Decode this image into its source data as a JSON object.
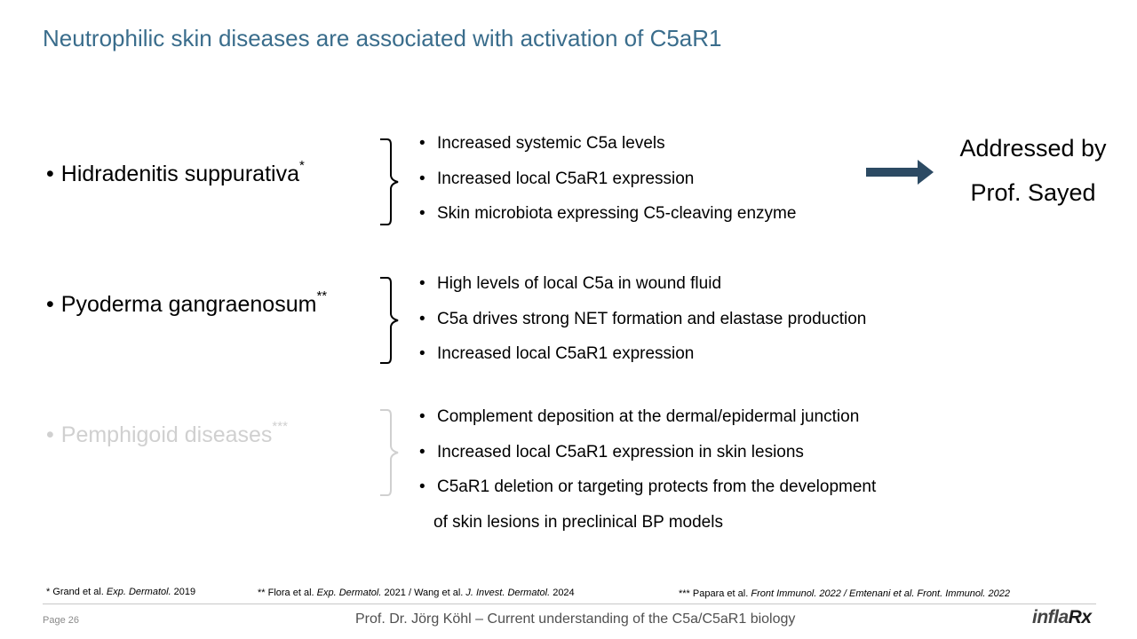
{
  "title": "Neutrophilic skin diseases are associated with activation of C5aR1",
  "sections": [
    {
      "disease": "Hidradenitis suppurativa",
      "marker": "*",
      "points": [
        "Increased systemic C5a levels",
        "Increased  local C5aR1 expression",
        "Skin microbiota expressing C5-cleaving enzyme"
      ]
    },
    {
      "disease": "Pyoderma gangraenosum",
      "marker": "**",
      "points": [
        "High levels of local C5a in wound fluid",
        "C5a drives strong NET formation and elastase production",
        "Increased  local C5aR1 expression"
      ]
    },
    {
      "disease": "Pemphigoid diseases",
      "marker": "***",
      "points": [
        "Complement deposition at the dermal/epidermal junction",
        "Increased  local C5aR1 expression in skin lesions",
        "C5aR1 deletion or targeting protects from the development"
      ],
      "continuation": "of skin lesions in preclinical BP models"
    }
  ],
  "bullet": "•",
  "addressed": {
    "line1": "Addressed by",
    "line2": "Prof.  Sayed"
  },
  "references": {
    "ref1_prefix": "* Grand et al. ",
    "ref1_journal": "Exp. Dermatol.",
    "ref1_year": " 2019",
    "ref2_prefix": "** Flora  et al. ",
    "ref2_journal": "Exp. Dermatol.",
    "ref2_mid": " 2021 / Wang et al. ",
    "ref2_journal2": "J. Invest. Dermatol.",
    "ref2_year": " 2024",
    "ref3_prefix": "*** Papara et al.  ",
    "ref3_rest": "Front Immunol. 2022 / Emtenani et al. Front. Immunol. 2022"
  },
  "footer": {
    "page": "Page 26",
    "text": "Prof. Dr. Jörg Köhl – Current understanding of the C5a/C5aR1 biology",
    "logo_a": "infla",
    "logo_b": "Rx"
  },
  "colors": {
    "title": "#3a6d8c",
    "arrow": "#2c4a63",
    "muted": "#d0d0d0"
  }
}
